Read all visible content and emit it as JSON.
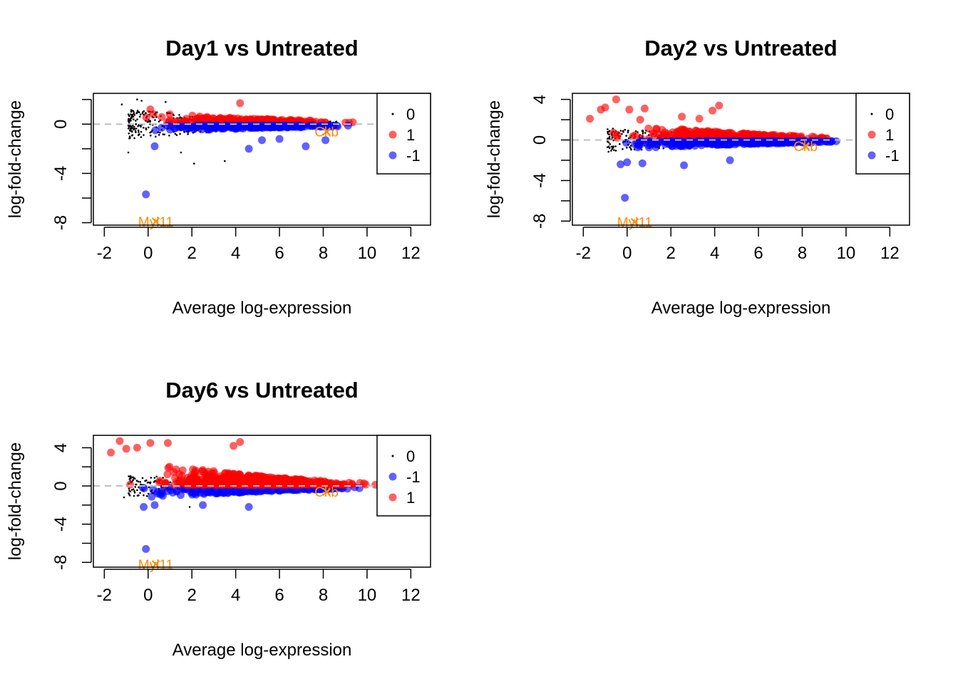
{
  "colors": {
    "not_sig": "#000000",
    "up": "#ff0000",
    "down": "#0000ff",
    "highlight": "#ff8c00",
    "zero_line": "#bebebe"
  },
  "chart_data": [
    {
      "type": "scatter",
      "panel": "Day1",
      "title": "Day1 vs Untreated",
      "xlabel": "Average log-expression",
      "ylabel": "log-fold-change",
      "xlim": [
        -2.5,
        12.9
      ],
      "ylim": [
        -8.2,
        2.5
      ],
      "xticks": [
        -2,
        0,
        2,
        4,
        6,
        8,
        10,
        12
      ],
      "xtick_labels": [
        "-2",
        "0",
        "2",
        "4",
        "6",
        "8",
        "10",
        "12"
      ],
      "yticks": [
        -8,
        -6,
        -4,
        -2,
        0,
        2
      ],
      "ytick_labels": [
        "-8",
        "",
        "-4",
        "",
        "0",
        ""
      ],
      "zero_line": 0,
      "legend": {
        "position": "top-right",
        "entries": [
          {
            "label": "0",
            "status": "0"
          },
          {
            "label": "1",
            "status": "1"
          },
          {
            "label": "-1",
            "status": "-1"
          }
        ]
      },
      "spread": {
        "up_max": 0.9,
        "up_min": 0.05,
        "down_max": 0.55,
        "down_min": 0.05,
        "up_count": 280,
        "down_count": 230,
        "black_count": 420
      },
      "outliers": [
        {
          "status": "1",
          "x": 4.2,
          "y": 1.7
        },
        {
          "status": "1",
          "x": 0.1,
          "y": 1.2
        },
        {
          "status": "-1",
          "x": -0.1,
          "y": -5.7
        },
        {
          "status": "-1",
          "x": 4.6,
          "y": -2.0
        },
        {
          "status": "-1",
          "x": 7.2,
          "y": -1.8
        },
        {
          "status": "-1",
          "x": 0.3,
          "y": -1.8
        },
        {
          "status": "-1",
          "x": 5.2,
          "y": -1.3
        },
        {
          "status": "-1",
          "x": 6.0,
          "y": -1.2
        },
        {
          "status": "-1",
          "x": 8.1,
          "y": -1.3
        },
        {
          "status": "0",
          "x": -0.5,
          "y": 2.0
        },
        {
          "status": "0",
          "x": -0.3,
          "y": 1.9
        },
        {
          "status": "0",
          "x": 0.8,
          "y": 1.8
        },
        {
          "status": "0",
          "x": -1.2,
          "y": 1.6
        },
        {
          "status": "0",
          "x": 2.1,
          "y": -3.2
        },
        {
          "status": "0",
          "x": 3.5,
          "y": -3.0
        },
        {
          "status": "0",
          "x": -0.9,
          "y": -2.3
        },
        {
          "status": "0",
          "x": 1.5,
          "y": -2.3
        }
      ],
      "highlights": [
        {
          "label": "Myl11",
          "x": 0.35,
          "y": -7.9
        },
        {
          "label": "Ckb",
          "x": 8.15,
          "y": -0.6
        }
      ]
    },
    {
      "type": "scatter",
      "panel": "Day2",
      "title": "Day2 vs Untreated",
      "xlabel": "Average log-expression",
      "ylabel": "log-fold-change",
      "xlim": [
        -2.5,
        12.9
      ],
      "ylim": [
        -8.4,
        4.6
      ],
      "xticks": [
        -2,
        0,
        2,
        4,
        6,
        8,
        10,
        12
      ],
      "xtick_labels": [
        "-2",
        "0",
        "2",
        "4",
        "6",
        "8",
        "10",
        "12"
      ],
      "yticks": [
        -8,
        -6,
        -4,
        -2,
        0,
        2,
        4
      ],
      "ytick_labels": [
        "-8",
        "",
        "-4",
        "",
        "0",
        "",
        "4"
      ],
      "zero_line": 0,
      "legend": {
        "position": "top-right",
        "entries": [
          {
            "label": "0",
            "status": "0"
          },
          {
            "label": "1",
            "status": "1"
          },
          {
            "label": "-1",
            "status": "-1"
          }
        ]
      },
      "spread": {
        "up_max": 1.6,
        "up_min": 0.1,
        "down_max": 0.8,
        "down_min": 0.1,
        "up_count": 360,
        "down_count": 320,
        "black_count": 300
      },
      "outliers": [
        {
          "status": "1",
          "x": -0.5,
          "y": 4.0
        },
        {
          "status": "1",
          "x": -1.0,
          "y": 3.2
        },
        {
          "status": "1",
          "x": -1.2,
          "y": 3.0
        },
        {
          "status": "1",
          "x": 0.1,
          "y": 3.0
        },
        {
          "status": "1",
          "x": 0.8,
          "y": 3.1
        },
        {
          "status": "1",
          "x": 4.2,
          "y": 3.4
        },
        {
          "status": "1",
          "x": 3.9,
          "y": 2.9
        },
        {
          "status": "1",
          "x": -1.7,
          "y": 2.1
        },
        {
          "status": "1",
          "x": 0.6,
          "y": 2.0
        },
        {
          "status": "1",
          "x": 2.5,
          "y": 2.3
        },
        {
          "status": "1",
          "x": 3.3,
          "y": 2.1
        },
        {
          "status": "-1",
          "x": -0.1,
          "y": -5.7
        },
        {
          "status": "-1",
          "x": 2.6,
          "y": -2.5
        },
        {
          "status": "-1",
          "x": -0.3,
          "y": -2.4
        },
        {
          "status": "-1",
          "x": 0.7,
          "y": -2.3
        },
        {
          "status": "-1",
          "x": 4.7,
          "y": -2.0
        },
        {
          "status": "-1",
          "x": 0.0,
          "y": -2.2
        },
        {
          "status": "0",
          "x": -0.8,
          "y": -0.8
        },
        {
          "status": "0",
          "x": -0.6,
          "y": -1.0
        }
      ],
      "highlights": [
        {
          "label": "Myl11",
          "x": 0.35,
          "y": -8.1
        },
        {
          "label": "Ckb",
          "x": 8.15,
          "y": -0.6
        }
      ]
    },
    {
      "type": "scatter",
      "panel": "Day6",
      "title": "Day6 vs Untreated",
      "xlabel": "Average log-expression",
      "ylabel": "log-fold-change",
      "xlim": [
        -2.5,
        12.9
      ],
      "ylim": [
        -8.5,
        5.3
      ],
      "xticks": [
        -2,
        0,
        2,
        4,
        6,
        8,
        10,
        12
      ],
      "xtick_labels": [
        "-2",
        "0",
        "2",
        "4",
        "6",
        "8",
        "10",
        "12"
      ],
      "yticks": [
        -8,
        -6,
        -4,
        -2,
        0,
        2,
        4
      ],
      "ytick_labels": [
        "-8",
        "",
        "-4",
        "",
        "0",
        "",
        "4"
      ],
      "zero_line": 0,
      "legend": {
        "position": "top-right",
        "entries": [
          {
            "label": "0",
            "status": "0"
          },
          {
            "label": "-1",
            "status": "-1"
          },
          {
            "label": "1",
            "status": "1"
          }
        ]
      },
      "spread": {
        "up_max": 2.6,
        "up_min": 0.15,
        "down_max": 1.2,
        "down_min": 0.15,
        "up_count": 620,
        "down_count": 460,
        "black_count": 220
      },
      "outliers": [
        {
          "status": "1",
          "x": -1.3,
          "y": 4.7
        },
        {
          "status": "1",
          "x": 0.1,
          "y": 4.5
        },
        {
          "status": "1",
          "x": 0.9,
          "y": 4.5
        },
        {
          "status": "1",
          "x": -1.7,
          "y": 3.5
        },
        {
          "status": "1",
          "x": -1.0,
          "y": 3.9
        },
        {
          "status": "1",
          "x": 4.2,
          "y": 4.6
        },
        {
          "status": "1",
          "x": 3.9,
          "y": 4.2
        },
        {
          "status": "1",
          "x": -0.5,
          "y": 4.0
        },
        {
          "status": "-1",
          "x": -0.1,
          "y": -6.6
        },
        {
          "status": "-1",
          "x": 4.6,
          "y": -2.2
        },
        {
          "status": "-1",
          "x": -0.2,
          "y": -2.2
        },
        {
          "status": "-1",
          "x": 0.3,
          "y": -2.0
        },
        {
          "status": "-1",
          "x": 2.5,
          "y": -2.0
        },
        {
          "status": "0",
          "x": -1.1,
          "y": -1.2
        },
        {
          "status": "0",
          "x": 1.9,
          "y": -2.2
        }
      ],
      "highlights": [
        {
          "label": "Myl11",
          "x": 0.35,
          "y": -8.2
        },
        {
          "label": "Ckb",
          "x": 8.15,
          "y": -0.6
        }
      ]
    }
  ]
}
